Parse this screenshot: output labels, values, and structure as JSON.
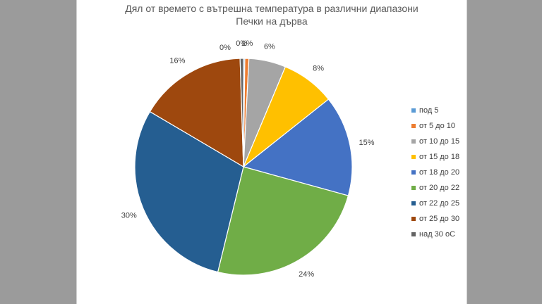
{
  "chart_data": {
    "type": "pie",
    "title": "Дял от времето с вътрешна температура в различни диапазони",
    "subtitle": "Печки на дърва",
    "categories": [
      "под 5",
      "от 5 до 10",
      "от 10 до 15",
      "от 15 до 18",
      "от 18 до 20",
      "от 20 до 22",
      "от 22 до 25",
      "от 25 до 30",
      "над 30 оС"
    ],
    "values": [
      0.2,
      0.6,
      5.5,
      8.0,
      15.0,
      24.5,
      29.7,
      16.0,
      0.5
    ],
    "data_labels": [
      "",
      "1%",
      "6%",
      "8%",
      "15%",
      "24%",
      "30%",
      "16%",
      "0%"
    ],
    "extra_label": "0%",
    "colors": [
      "#5b9bd5",
      "#ed7d31",
      "#a5a5a5",
      "#ffc000",
      "#4472c4",
      "#70ad47",
      "#255e91",
      "#9e480e",
      "#636363"
    ],
    "legend_position": "right"
  }
}
